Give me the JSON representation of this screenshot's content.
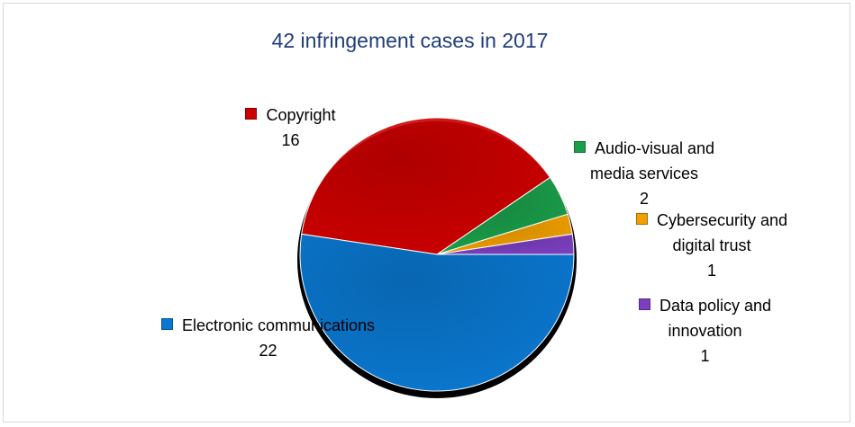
{
  "chart_data": {
    "type": "pie",
    "title": "42 infringement cases in 2017",
    "categories": [
      "Copyright",
      "Audio-visual and media services",
      "Cybersecurity and digital trust",
      "Data policy and innovation",
      "Electronic communications"
    ],
    "values": [
      16,
      2,
      1,
      1,
      22
    ],
    "colors": [
      "#cc0000",
      "#1a9e4a",
      "#f0a000",
      "#7b3fbf",
      "#0a78d0"
    ]
  }
}
